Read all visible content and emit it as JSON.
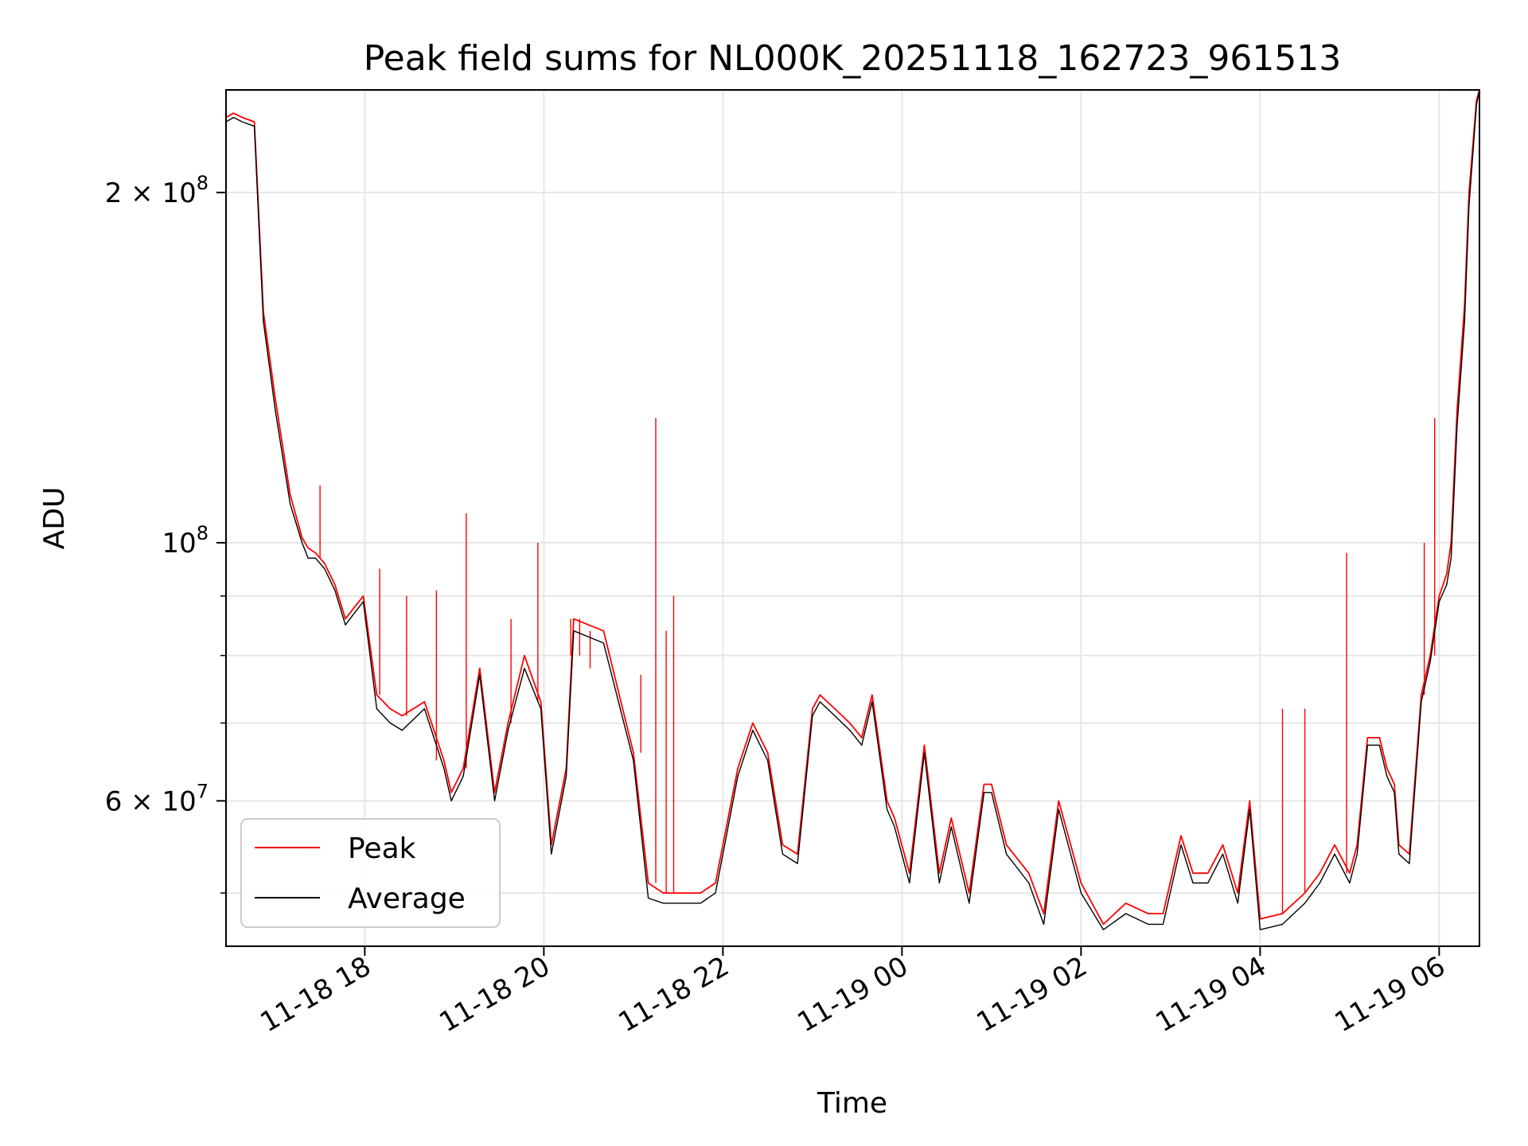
{
  "chart_data": {
    "type": "line",
    "title": "Peak field sums for NL000K_20251118_162723_961513",
    "xlabel": "Time",
    "ylabel": "ADU",
    "y_scale": "log",
    "ylim": [
      45000000,
      245000000
    ],
    "xlim": [
      "2025-11-18 16:27",
      "2025-11-19 06:27"
    ],
    "grid": true,
    "legend_position": "lower-left",
    "x_ticks": [
      {
        "value": "2025-11-18 18:00",
        "label": "11-18 18"
      },
      {
        "value": "2025-11-18 20:00",
        "label": "11-18 20"
      },
      {
        "value": "2025-11-18 22:00",
        "label": "11-18 22"
      },
      {
        "value": "2025-11-19 00:00",
        "label": "11-19 00"
      },
      {
        "value": "2025-11-19 02:00",
        "label": "11-19 02"
      },
      {
        "value": "2025-11-19 04:00",
        "label": "11-19 04"
      },
      {
        "value": "2025-11-19 06:00",
        "label": "11-19 06"
      }
    ],
    "y_ticks": [
      {
        "value": 200000000,
        "mantissa": "2",
        "exponent": "8",
        "base": "10"
      },
      {
        "value": 100000000,
        "mantissa": "",
        "exponent": "8",
        "base": "10"
      },
      {
        "value": 60000000,
        "mantissa": "6",
        "exponent": "7",
        "base": "10"
      }
    ],
    "y_minor_ticks": [
      50000000,
      70000000,
      80000000,
      90000000
    ],
    "series": [
      {
        "name": "Peak",
        "color": "#ff0000",
        "x": [
          "2025-11-18 16:27",
          "2025-11-18 16:32",
          "2025-11-18 16:38",
          "2025-11-18 16:46",
          "2025-11-18 16:52",
          "2025-11-18 17:00",
          "2025-11-18 17:10",
          "2025-11-18 17:18",
          "2025-11-18 17:22",
          "2025-11-18 17:27",
          "2025-11-18 17:30",
          "2025-11-18 17:33",
          "2025-11-18 17:40",
          "2025-11-18 17:47",
          "2025-11-18 17:53",
          "2025-11-18 17:59",
          "2025-11-18 18:08",
          "2025-11-18 18:17",
          "2025-11-18 18:25",
          "2025-11-18 18:40",
          "2025-11-18 18:53",
          "2025-11-18 18:58",
          "2025-11-18 19:06",
          "2025-11-18 19:17",
          "2025-11-18 19:27",
          "2025-11-18 19:36",
          "2025-11-18 19:47",
          "2025-11-18 19:58",
          "2025-11-18 20:05",
          "2025-11-18 20:15",
          "2025-11-18 20:20",
          "2025-11-18 20:40",
          "2025-11-18 21:00",
          "2025-11-18 21:10",
          "2025-11-18 21:20",
          "2025-11-18 21:35",
          "2025-11-18 21:45",
          "2025-11-18 21:55",
          "2025-11-18 22:10",
          "2025-11-18 22:20",
          "2025-11-18 22:30",
          "2025-11-18 22:40",
          "2025-11-18 22:50",
          "2025-11-18 23:00",
          "2025-11-18 23:05",
          "2025-11-18 23:15",
          "2025-11-18 23:25",
          "2025-11-18 23:33",
          "2025-11-18 23:40",
          "2025-11-18 23:50",
          "2025-11-18 23:55",
          "2025-11-19 00:05",
          "2025-11-19 00:15",
          "2025-11-19 00:25",
          "2025-11-19 00:33",
          "2025-11-19 00:45",
          "2025-11-19 00:55",
          "2025-11-19 01:00",
          "2025-11-19 01:10",
          "2025-11-19 01:25",
          "2025-11-19 01:35",
          "2025-11-19 01:45",
          "2025-11-19 02:00",
          "2025-11-19 02:15",
          "2025-11-19 02:30",
          "2025-11-19 02:45",
          "2025-11-19 02:55",
          "2025-11-19 03:07",
          "2025-11-19 03:15",
          "2025-11-19 03:25",
          "2025-11-19 03:35",
          "2025-11-19 03:45",
          "2025-11-19 03:53",
          "2025-11-19 04:00",
          "2025-11-19 04:15",
          "2025-11-19 04:30",
          "2025-11-19 04:40",
          "2025-11-19 04:50",
          "2025-11-19 05:00",
          "2025-11-19 05:05",
          "2025-11-19 05:12",
          "2025-11-19 05:20",
          "2025-11-19 05:25",
          "2025-11-19 05:30",
          "2025-11-19 05:33",
          "2025-11-19 05:40",
          "2025-11-19 05:48",
          "2025-11-19 05:54",
          "2025-11-19 06:00",
          "2025-11-19 06:05",
          "2025-11-19 06:08",
          "2025-11-19 06:12",
          "2025-11-19 06:17",
          "2025-11-19 06:20",
          "2025-11-19 06:25",
          "2025-11-19 06:27"
        ],
        "y": [
          232000000,
          234000000,
          232000000,
          230000000,
          158000000,
          133000000,
          110000000,
          101000000,
          99000000,
          98000000,
          97000000,
          96000000,
          92000000,
          86000000,
          88000000,
          90000000,
          74000000,
          72000000,
          71000000,
          73000000,
          65000000,
          61000000,
          64000000,
          78000000,
          61000000,
          70000000,
          80000000,
          73000000,
          55000000,
          64000000,
          86000000,
          84000000,
          66000000,
          51000000,
          50000000,
          50000000,
          50000000,
          51000000,
          64000000,
          70000000,
          66000000,
          55000000,
          54000000,
          72000000,
          74000000,
          72000000,
          70000000,
          68000000,
          74000000,
          60000000,
          58000000,
          52000000,
          67000000,
          52000000,
          58000000,
          50000000,
          62000000,
          62000000,
          55000000,
          52000000,
          48000000,
          60000000,
          51000000,
          47000000,
          49000000,
          48000000,
          48000000,
          56000000,
          52000000,
          52000000,
          55000000,
          50000000,
          60000000,
          47500000,
          48000000,
          50000000,
          52000000,
          55000000,
          52000000,
          55000000,
          68000000,
          68000000,
          64000000,
          62000000,
          55000000,
          54000000,
          74000000,
          80000000,
          90000000,
          94000000,
          100000000,
          130000000,
          160000000,
          200000000,
          240000000,
          245000000
        ],
        "spikes": [
          {
            "x": "2025-11-18 17:30",
            "y": 112000000
          },
          {
            "x": "2025-11-18 18:10",
            "y": 95000000
          },
          {
            "x": "2025-11-18 18:28",
            "y": 90000000
          },
          {
            "x": "2025-11-18 18:48",
            "y": 91000000
          },
          {
            "x": "2025-11-18 19:08",
            "y": 106000000
          },
          {
            "x": "2025-11-18 19:38",
            "y": 86000000
          },
          {
            "x": "2025-11-18 19:56",
            "y": 100000000
          },
          {
            "x": "2025-11-18 20:18",
            "y": 80000000
          },
          {
            "x": "2025-11-18 20:24",
            "y": 80000000
          },
          {
            "x": "2025-11-18 20:31",
            "y": 78000000
          },
          {
            "x": "2025-11-18 21:05",
            "y": 77000000
          },
          {
            "x": "2025-11-18 21:15",
            "y": 128000000
          },
          {
            "x": "2025-11-18 21:22",
            "y": 84000000
          },
          {
            "x": "2025-11-18 21:27",
            "y": 90000000
          },
          {
            "x": "2025-11-19 04:15",
            "y": 72000000
          },
          {
            "x": "2025-11-19 04:30",
            "y": 72000000
          },
          {
            "x": "2025-11-19 04:58",
            "y": 98000000
          },
          {
            "x": "2025-11-19 05:50",
            "y": 100000000
          },
          {
            "x": "2025-11-19 05:57",
            "y": 128000000
          }
        ]
      },
      {
        "name": "Average",
        "color": "#000000",
        "x": [
          "2025-11-18 16:27",
          "2025-11-18 16:32",
          "2025-11-18 16:38",
          "2025-11-18 16:46",
          "2025-11-18 16:52",
          "2025-11-18 17:00",
          "2025-11-18 17:10",
          "2025-11-18 17:18",
          "2025-11-18 17:22",
          "2025-11-18 17:27",
          "2025-11-18 17:30",
          "2025-11-18 17:33",
          "2025-11-18 17:40",
          "2025-11-18 17:47",
          "2025-11-18 17:53",
          "2025-11-18 17:59",
          "2025-11-18 18:08",
          "2025-11-18 18:17",
          "2025-11-18 18:25",
          "2025-11-18 18:40",
          "2025-11-18 18:53",
          "2025-11-18 18:58",
          "2025-11-18 19:06",
          "2025-11-18 19:17",
          "2025-11-18 19:27",
          "2025-11-18 19:36",
          "2025-11-18 19:47",
          "2025-11-18 19:58",
          "2025-11-18 20:05",
          "2025-11-18 20:15",
          "2025-11-18 20:20",
          "2025-11-18 20:40",
          "2025-11-18 21:00",
          "2025-11-18 21:10",
          "2025-11-18 21:20",
          "2025-11-18 21:35",
          "2025-11-18 21:45",
          "2025-11-18 21:55",
          "2025-11-18 22:10",
          "2025-11-18 22:20",
          "2025-11-18 22:30",
          "2025-11-18 22:40",
          "2025-11-18 22:50",
          "2025-11-18 23:00",
          "2025-11-18 23:05",
          "2025-11-18 23:15",
          "2025-11-18 23:25",
          "2025-11-18 23:33",
          "2025-11-18 23:40",
          "2025-11-18 23:50",
          "2025-11-18 23:55",
          "2025-11-19 00:05",
          "2025-11-19 00:15",
          "2025-11-19 00:25",
          "2025-11-19 00:33",
          "2025-11-19 00:45",
          "2025-11-19 00:55",
          "2025-11-19 01:00",
          "2025-11-19 01:10",
          "2025-11-19 01:25",
          "2025-11-19 01:35",
          "2025-11-19 01:45",
          "2025-11-19 02:00",
          "2025-11-19 02:15",
          "2025-11-19 02:30",
          "2025-11-19 02:45",
          "2025-11-19 02:55",
          "2025-11-19 03:07",
          "2025-11-19 03:15",
          "2025-11-19 03:25",
          "2025-11-19 03:35",
          "2025-11-19 03:45",
          "2025-11-19 03:53",
          "2025-11-19 04:00",
          "2025-11-19 04:15",
          "2025-11-19 04:30",
          "2025-11-19 04:40",
          "2025-11-19 04:50",
          "2025-11-19 05:00",
          "2025-11-19 05:05",
          "2025-11-19 05:12",
          "2025-11-19 05:20",
          "2025-11-19 05:25",
          "2025-11-19 05:30",
          "2025-11-19 05:33",
          "2025-11-19 05:40",
          "2025-11-19 05:48",
          "2025-11-19 05:54",
          "2025-11-19 06:00",
          "2025-11-19 06:05",
          "2025-11-19 06:08",
          "2025-11-19 06:12",
          "2025-11-19 06:17",
          "2025-11-19 06:20",
          "2025-11-19 06:25",
          "2025-11-19 06:27"
        ],
        "y": [
          230000000,
          232000000,
          230000000,
          228000000,
          155000000,
          130000000,
          108000000,
          100000000,
          97000000,
          97000000,
          96000000,
          95000000,
          91000000,
          85000000,
          87000000,
          89000000,
          72000000,
          70000000,
          69000000,
          72000000,
          64000000,
          60000000,
          63000000,
          77000000,
          60000000,
          69000000,
          78000000,
          72000000,
          54000000,
          63000000,
          84000000,
          82000000,
          65000000,
          49500000,
          49000000,
          49000000,
          49000000,
          50000000,
          63000000,
          69000000,
          65000000,
          54000000,
          53000000,
          71000000,
          73000000,
          71000000,
          69000000,
          67000000,
          73000000,
          59000000,
          57000000,
          51000000,
          66000000,
          51000000,
          57000000,
          49000000,
          61000000,
          61000000,
          54000000,
          51000000,
          47000000,
          59000000,
          50000000,
          46500000,
          48000000,
          47000000,
          47000000,
          55000000,
          51000000,
          51000000,
          54000000,
          49000000,
          59000000,
          46500000,
          47000000,
          49000000,
          51000000,
          54000000,
          51000000,
          54000000,
          67000000,
          67000000,
          63000000,
          61000000,
          54000000,
          53000000,
          73000000,
          79000000,
          89000000,
          92000000,
          97000000,
          126000000,
          155000000,
          195000000,
          238000000,
          245000000
        ]
      }
    ]
  }
}
